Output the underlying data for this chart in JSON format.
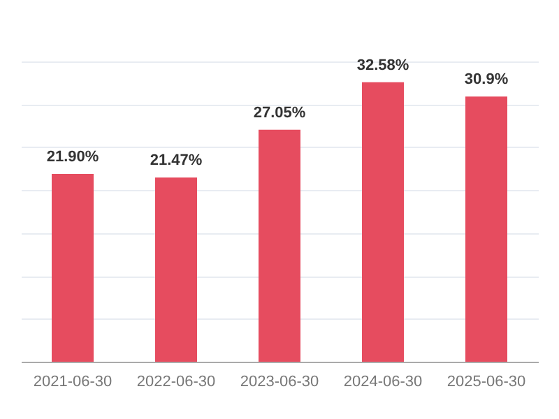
{
  "chart_data": {
    "type": "bar",
    "categories": [
      "2021-06-30",
      "2022-06-30",
      "2023-06-30",
      "2024-06-30",
      "2025-06-30"
    ],
    "values": [
      21.9,
      21.47,
      27.05,
      32.58,
      30.9
    ],
    "value_labels": [
      "21.90%",
      "21.47%",
      "27.05%",
      "32.58%",
      "30.9%"
    ],
    "color": "#e64c5f",
    "grid": "y",
    "tick_labels": "x"
  }
}
